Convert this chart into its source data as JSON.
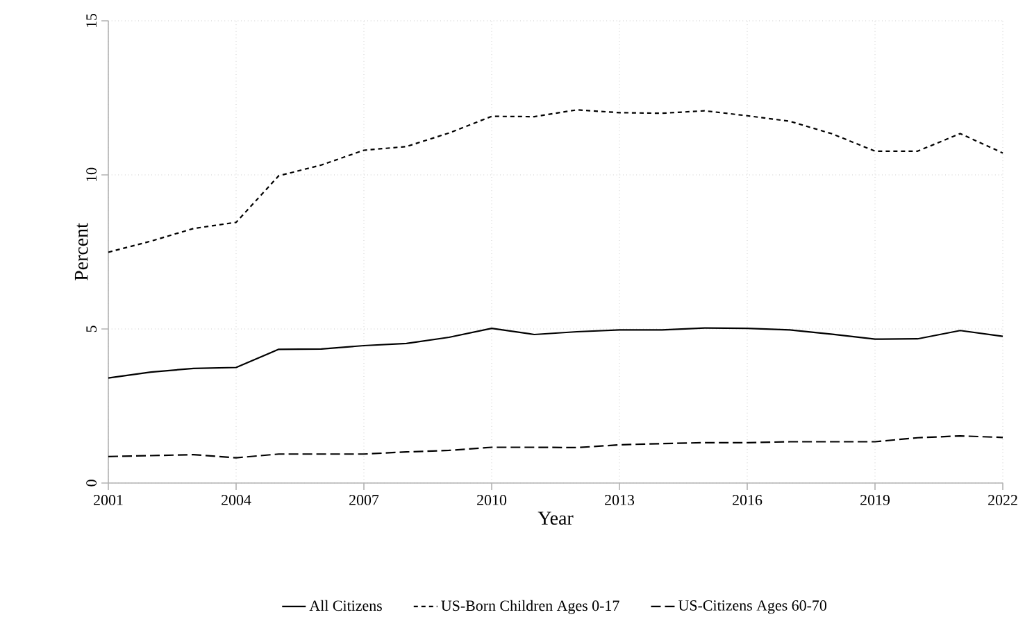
{
  "chart_data": {
    "type": "line",
    "xlabel": "Year",
    "ylabel": "Percent",
    "x": [
      2001,
      2002,
      2003,
      2004,
      2005,
      2006,
      2007,
      2008,
      2009,
      2010,
      2011,
      2012,
      2013,
      2014,
      2015,
      2016,
      2017,
      2018,
      2019,
      2020,
      2021,
      2022
    ],
    "series": [
      {
        "name": "All Citizens",
        "color": "#000000",
        "line_style": "solid",
        "values": [
          3.41,
          3.6,
          3.72,
          3.75,
          4.34,
          4.35,
          4.46,
          4.53,
          4.73,
          5.02,
          4.82,
          4.91,
          4.97,
          4.97,
          5.03,
          5.02,
          4.97,
          4.83,
          4.67,
          4.68,
          4.95,
          4.76
        ]
      },
      {
        "name": "US-Born Children Ages 0-17",
        "color": "#000000",
        "line_style": "dotted",
        "values": [
          7.49,
          7.85,
          8.26,
          8.46,
          9.97,
          10.32,
          10.8,
          10.92,
          11.36,
          11.9,
          11.89,
          12.11,
          12.02,
          12.0,
          12.08,
          11.92,
          11.74,
          11.33,
          10.77,
          10.77,
          11.34,
          10.71
        ]
      },
      {
        "name": "US-Citizens Ages 60-70",
        "color": "#000000",
        "line_style": "dashed",
        "values": [
          0.86,
          0.89,
          0.92,
          0.82,
          0.94,
          0.94,
          0.94,
          1.01,
          1.06,
          1.16,
          1.16,
          1.15,
          1.24,
          1.28,
          1.31,
          1.31,
          1.34,
          1.34,
          1.34,
          1.47,
          1.53,
          1.48
        ]
      }
    ],
    "xlim": [
      2001,
      2022
    ],
    "ylim": [
      0,
      15
    ],
    "xticks": [
      2001,
      2004,
      2007,
      2010,
      2013,
      2016,
      2019,
      2022
    ],
    "yticks": [
      0,
      5,
      10,
      15
    ],
    "grid": true,
    "legend": "bottom",
    "marker": "none"
  }
}
